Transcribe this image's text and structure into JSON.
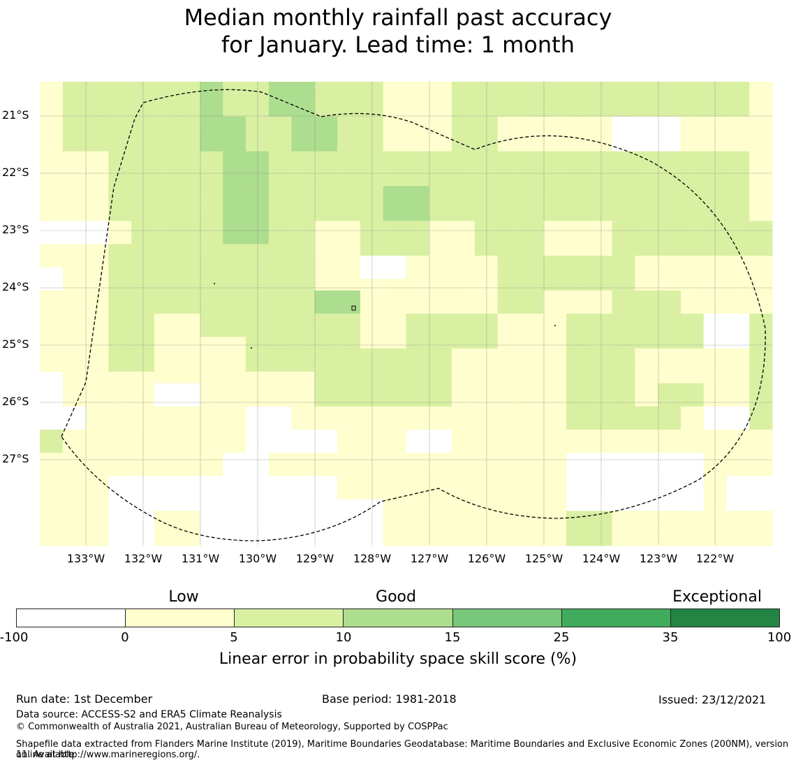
{
  "title_line1": "Median monthly rainfall past accuracy",
  "title_line2": "for January. Lead time: 1 month",
  "map": {
    "lat_labels": [
      "21°S",
      "22°S",
      "23°S",
      "24°S",
      "25°S",
      "26°S",
      "27°S"
    ],
    "lon_labels": [
      "133°W",
      "132°W",
      "131°W",
      "130°W",
      "129°W",
      "128°W",
      "127°W",
      "126°W",
      "125°W",
      "124°W",
      "123°W",
      "122°W"
    ],
    "category_colors": [
      "#ffffff",
      "#fefece",
      "#d9f0a3",
      "#addd8e",
      "#78c679",
      "#41ab5d",
      "#238443"
    ],
    "boundary_color": "#000000",
    "grid_color": "#888888",
    "grid_cells": [
      [
        1,
        2,
        2,
        2,
        2,
        2,
        2,
        3,
        2,
        2,
        3,
        3,
        2,
        2,
        2,
        1,
        1,
        1,
        2,
        2,
        2,
        2,
        2,
        2,
        2,
        2,
        2,
        2,
        2,
        2,
        2,
        1
      ],
      [
        1,
        2,
        2,
        2,
        2,
        2,
        2,
        3,
        2,
        2,
        3,
        3,
        2,
        2,
        2,
        1,
        1,
        1,
        2,
        2,
        2,
        2,
        2,
        2,
        2,
        2,
        2,
        2,
        2,
        2,
        2,
        1
      ],
      [
        1,
        2,
        2,
        2,
        2,
        2,
        2,
        3,
        2,
        2,
        3,
        3,
        2,
        2,
        2,
        1,
        1,
        1,
        2,
        2,
        2,
        2,
        2,
        2,
        2,
        2,
        2,
        2,
        2,
        2,
        2,
        1
      ],
      [
        1,
        2,
        2,
        2,
        2,
        2,
        2,
        3,
        3,
        2,
        2,
        3,
        3,
        2,
        2,
        1,
        1,
        1,
        2,
        2,
        1,
        1,
        1,
        1,
        1,
        0,
        0,
        0,
        1,
        1,
        1,
        1
      ],
      [
        1,
        2,
        2,
        2,
        2,
        2,
        2,
        3,
        3,
        2,
        2,
        3,
        3,
        2,
        2,
        1,
        1,
        1,
        2,
        2,
        1,
        1,
        1,
        1,
        1,
        0,
        0,
        0,
        1,
        1,
        1,
        1
      ],
      [
        1,
        2,
        2,
        2,
        2,
        2,
        2,
        3,
        3,
        2,
        2,
        3,
        3,
        2,
        2,
        1,
        1,
        1,
        2,
        2,
        1,
        1,
        1,
        1,
        1,
        0,
        0,
        0,
        1,
        1,
        1,
        1
      ],
      [
        1,
        1,
        1,
        2,
        2,
        2,
        2,
        2,
        3,
        3,
        2,
        2,
        2,
        2,
        2,
        2,
        2,
        2,
        2,
        2,
        2,
        2,
        2,
        2,
        2,
        2,
        2,
        2,
        2,
        2,
        2,
        1
      ],
      [
        1,
        1,
        1,
        2,
        2,
        2,
        2,
        2,
        3,
        3,
        2,
        2,
        2,
        2,
        2,
        2,
        2,
        2,
        2,
        2,
        2,
        2,
        2,
        2,
        2,
        2,
        2,
        2,
        2,
        2,
        2,
        1
      ],
      [
        1,
        1,
        1,
        2,
        2,
        2,
        2,
        2,
        3,
        3,
        2,
        2,
        2,
        2,
        2,
        2,
        2,
        2,
        2,
        2,
        2,
        2,
        2,
        2,
        2,
        2,
        2,
        2,
        2,
        2,
        2,
        1
      ],
      [
        1,
        1,
        1,
        2,
        2,
        2,
        2,
        2,
        3,
        3,
        2,
        2,
        2,
        2,
        2,
        3,
        3,
        2,
        2,
        2,
        2,
        2,
        2,
        2,
        2,
        2,
        2,
        2,
        2,
        2,
        2,
        1
      ],
      [
        1,
        1,
        1,
        2,
        2,
        2,
        2,
        2,
        3,
        3,
        2,
        2,
        2,
        2,
        2,
        3,
        3,
        2,
        2,
        2,
        2,
        2,
        2,
        2,
        2,
        2,
        2,
        2,
        2,
        2,
        2,
        1
      ],
      [
        1,
        1,
        1,
        2,
        2,
        2,
        2,
        2,
        3,
        3,
        2,
        2,
        2,
        2,
        2,
        3,
        3,
        2,
        2,
        2,
        2,
        2,
        2,
        2,
        2,
        2,
        2,
        2,
        2,
        2,
        2,
        1
      ],
      [
        0,
        0,
        0,
        1,
        2,
        2,
        2,
        2,
        3,
        3,
        2,
        2,
        1,
        1,
        2,
        2,
        2,
        1,
        1,
        2,
        2,
        2,
        1,
        1,
        1,
        2,
        2,
        2,
        2,
        2,
        2,
        2
      ],
      [
        0,
        0,
        0,
        1,
        2,
        2,
        2,
        2,
        3,
        3,
        2,
        2,
        1,
        1,
        2,
        2,
        2,
        1,
        1,
        2,
        2,
        2,
        1,
        1,
        1,
        2,
        2,
        2,
        2,
        2,
        2,
        2
      ],
      [
        1,
        1,
        1,
        2,
        2,
        2,
        2,
        2,
        2,
        2,
        2,
        2,
        1,
        1,
        2,
        2,
        2,
        1,
        1,
        2,
        2,
        2,
        1,
        1,
        1,
        2,
        2,
        2,
        2,
        2,
        2,
        2
      ],
      [
        1,
        1,
        1,
        2,
        2,
        2,
        2,
        2,
        2,
        2,
        2,
        2,
        1,
        1,
        0,
        0,
        1,
        1,
        1,
        1,
        2,
        2,
        2,
        2,
        2,
        2,
        1,
        1,
        1,
        1,
        1,
        1
      ],
      [
        0,
        1,
        1,
        2,
        2,
        2,
        2,
        2,
        2,
        2,
        2,
        2,
        1,
        1,
        0,
        0,
        1,
        1,
        1,
        1,
        2,
        2,
        2,
        2,
        2,
        2,
        1,
        1,
        1,
        1,
        1,
        1
      ],
      [
        0,
        1,
        1,
        2,
        2,
        2,
        2,
        2,
        2,
        2,
        2,
        2,
        1,
        1,
        1,
        1,
        1,
        1,
        1,
        1,
        2,
        2,
        2,
        2,
        2,
        2,
        1,
        1,
        1,
        1,
        1,
        1
      ],
      [
        1,
        1,
        1,
        2,
        2,
        2,
        2,
        2,
        2,
        2,
        2,
        2,
        3,
        3,
        1,
        1,
        1,
        1,
        1,
        1,
        2,
        2,
        1,
        1,
        1,
        2,
        2,
        2,
        1,
        1,
        1,
        1
      ],
      [
        1,
        1,
        1,
        2,
        2,
        2,
        2,
        2,
        2,
        2,
        2,
        2,
        3,
        3,
        1,
        1,
        1,
        1,
        1,
        1,
        2,
        2,
        1,
        1,
        1,
        2,
        2,
        2,
        1,
        1,
        1,
        1
      ],
      [
        1,
        1,
        1,
        2,
        2,
        1,
        1,
        2,
        2,
        2,
        2,
        2,
        2,
        2,
        1,
        1,
        2,
        2,
        2,
        2,
        1,
        1,
        1,
        2,
        2,
        2,
        2,
        2,
        2,
        0,
        0,
        2
      ],
      [
        1,
        1,
        1,
        2,
        2,
        1,
        1,
        2,
        2,
        2,
        2,
        2,
        2,
        2,
        1,
        1,
        2,
        2,
        2,
        2,
        1,
        1,
        1,
        2,
        2,
        2,
        2,
        2,
        2,
        0,
        0,
        2
      ],
      [
        1,
        1,
        1,
        2,
        2,
        1,
        1,
        1,
        1,
        2,
        2,
        2,
        2,
        2,
        1,
        1,
        2,
        2,
        2,
        2,
        1,
        1,
        1,
        2,
        2,
        2,
        2,
        2,
        2,
        0,
        0,
        2
      ],
      [
        1,
        1,
        1,
        2,
        2,
        1,
        1,
        1,
        1,
        2,
        2,
        2,
        2,
        2,
        2,
        2,
        2,
        2,
        1,
        1,
        1,
        1,
        1,
        2,
        2,
        2,
        1,
        1,
        1,
        1,
        1,
        2
      ],
      [
        1,
        1,
        1,
        2,
        2,
        1,
        1,
        1,
        1,
        2,
        2,
        2,
        2,
        2,
        2,
        2,
        2,
        2,
        1,
        1,
        1,
        1,
        1,
        2,
        2,
        2,
        1,
        1,
        1,
        1,
        1,
        2
      ],
      [
        0,
        1,
        1,
        1,
        1,
        1,
        1,
        1,
        1,
        1,
        1,
        1,
        2,
        2,
        2,
        2,
        2,
        2,
        1,
        1,
        1,
        1,
        1,
        2,
        2,
        2,
        1,
        1,
        1,
        1,
        1,
        2
      ],
      [
        0,
        1,
        1,
        1,
        1,
        0,
        0,
        1,
        1,
        1,
        1,
        1,
        2,
        2,
        2,
        2,
        2,
        2,
        1,
        1,
        1,
        1,
        1,
        2,
        2,
        2,
        1,
        2,
        2,
        1,
        1,
        2
      ],
      [
        0,
        1,
        1,
        1,
        1,
        0,
        0,
        1,
        1,
        1,
        1,
        1,
        2,
        2,
        2,
        2,
        2,
        2,
        1,
        1,
        1,
        1,
        1,
        2,
        2,
        2,
        1,
        2,
        2,
        1,
        1,
        2
      ],
      [
        0,
        0,
        1,
        1,
        1,
        1,
        1,
        1,
        1,
        0,
        0,
        1,
        1,
        1,
        1,
        1,
        1,
        1,
        1,
        1,
        1,
        1,
        1,
        2,
        2,
        2,
        2,
        2,
        1,
        0,
        0,
        2
      ],
      [
        0,
        0,
        1,
        1,
        1,
        1,
        1,
        1,
        1,
        0,
        0,
        1,
        1,
        1,
        1,
        1,
        1,
        1,
        1,
        1,
        1,
        1,
        1,
        2,
        2,
        2,
        2,
        2,
        1,
        0,
        0,
        2
      ],
      [
        2,
        1,
        1,
        1,
        1,
        1,
        1,
        1,
        1,
        0,
        0,
        0,
        0,
        1,
        1,
        1,
        0,
        0,
        1,
        1,
        1,
        1,
        1,
        1,
        1,
        1,
        1,
        1,
        1,
        1,
        1,
        1
      ],
      [
        2,
        1,
        1,
        1,
        1,
        1,
        1,
        1,
        1,
        0,
        0,
        0,
        0,
        1,
        1,
        1,
        0,
        0,
        1,
        1,
        1,
        1,
        1,
        1,
        1,
        1,
        1,
        1,
        1,
        1,
        1,
        1
      ],
      [
        1,
        1,
        1,
        1,
        1,
        1,
        1,
        1,
        0,
        0,
        1,
        1,
        1,
        1,
        1,
        1,
        1,
        1,
        1,
        1,
        1,
        1,
        1,
        0,
        0,
        0,
        0,
        0,
        0,
        1,
        1,
        1
      ],
      [
        1,
        1,
        1,
        1,
        1,
        1,
        1,
        1,
        0,
        0,
        1,
        1,
        1,
        1,
        1,
        1,
        1,
        1,
        1,
        1,
        1,
        1,
        1,
        0,
        0,
        0,
        0,
        0,
        0,
        1,
        1,
        1
      ],
      [
        1,
        1,
        1,
        0,
        0,
        0,
        0,
        0,
        0,
        0,
        0,
        0,
        0,
        1,
        1,
        1,
        1,
        1,
        1,
        1,
        1,
        1,
        1,
        0,
        0,
        0,
        0,
        0,
        0,
        1,
        0,
        0
      ],
      [
        1,
        1,
        1,
        0,
        0,
        0,
        0,
        0,
        0,
        0,
        0,
        0,
        0,
        1,
        1,
        1,
        1,
        1,
        1,
        1,
        1,
        1,
        1,
        0,
        0,
        0,
        0,
        0,
        0,
        1,
        0,
        0
      ],
      [
        1,
        1,
        1,
        0,
        0,
        0,
        0,
        0,
        0,
        0,
        0,
        0,
        0,
        0,
        0,
        1,
        1,
        1,
        1,
        1,
        1,
        1,
        1,
        0,
        0,
        0,
        0,
        0,
        0,
        1,
        0,
        0
      ],
      [
        1,
        1,
        1,
        0,
        0,
        1,
        1,
        0,
        0,
        0,
        0,
        0,
        0,
        0,
        0,
        1,
        1,
        1,
        1,
        1,
        1,
        1,
        1,
        2,
        2,
        1,
        1,
        1,
        1,
        1,
        1,
        1
      ],
      [
        1,
        1,
        1,
        0,
        0,
        1,
        1,
        0,
        0,
        0,
        0,
        0,
        0,
        0,
        0,
        1,
        1,
        1,
        1,
        1,
        1,
        1,
        1,
        2,
        2,
        1,
        1,
        1,
        1,
        1,
        1,
        1
      ],
      [
        1,
        1,
        1,
        0,
        0,
        1,
        1,
        0,
        0,
        0,
        0,
        0,
        0,
        0,
        0,
        1,
        1,
        1,
        1,
        1,
        1,
        1,
        1,
        2,
        2,
        1,
        1,
        1,
        1,
        1,
        1,
        1
      ]
    ]
  },
  "legend": {
    "categories": [
      "Low",
      "Good",
      "Exceptional"
    ],
    "ticks": [
      "-100",
      "0",
      "5",
      "10",
      "15",
      "25",
      "35",
      "100"
    ],
    "label": "Linear error in probability space skill score (%)"
  },
  "footer": {
    "run_date": "Run date: 1st December",
    "base_period": "Base period: 1981-2018",
    "issued": "Issued: 23/12/2021",
    "data_source": "Data source: ACCESS-S2 and ERA5 Climate Reanalysis",
    "copyright": "© Commonwealth of Australia 2021, Australian Bureau of Meteorology, Supported by COSPPac",
    "shapefile_line1": "Shapefile data extracted from Flanders Marine Institute (2019), Maritime Boundaries Geodatabase: Maritime Boundaries and Exclusive Economic Zones (200NM), version 11. Available",
    "shapefile_line2": "online at http://www.marineregions.org/."
  }
}
